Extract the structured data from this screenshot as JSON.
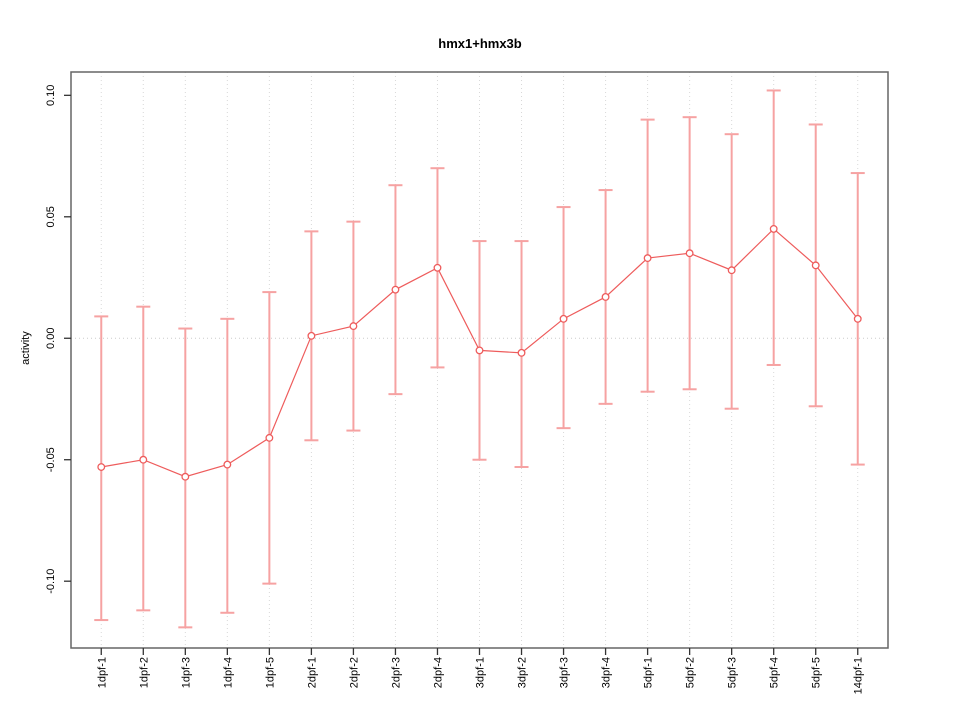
{
  "chart_data": {
    "type": "line",
    "title": "hmx1+hmx3b",
    "xlabel": "",
    "ylabel": "activity",
    "categories": [
      "1dpf-1",
      "1dpf-2",
      "1dpf-3",
      "1dpf-4",
      "1dpf-5",
      "2dpf-1",
      "2dpf-2",
      "2dpf-3",
      "2dpf-4",
      "3dpf-1",
      "3dpf-2",
      "3dpf-3",
      "3dpf-4",
      "5dpf-1",
      "5dpf-2",
      "5dpf-3",
      "5dpf-4",
      "5dpf-5",
      "14dpf-1"
    ],
    "series": [
      {
        "name": "activity",
        "values": [
          -0.053,
          -0.05,
          -0.057,
          -0.052,
          -0.041,
          0.001,
          0.005,
          0.02,
          0.029,
          -0.005,
          -0.006,
          0.008,
          0.017,
          0.033,
          0.035,
          0.028,
          0.045,
          0.03,
          0.008
        ],
        "error_high": [
          0.009,
          0.013,
          0.004,
          0.008,
          0.019,
          0.044,
          0.048,
          0.063,
          0.07,
          0.04,
          0.04,
          0.054,
          0.061,
          0.09,
          0.091,
          0.084,
          0.102,
          0.088,
          0.068
        ],
        "error_low": [
          -0.116,
          -0.112,
          -0.119,
          -0.113,
          -0.101,
          -0.042,
          -0.038,
          -0.023,
          -0.012,
          -0.05,
          -0.053,
          -0.037,
          -0.027,
          -0.022,
          -0.021,
          -0.029,
          -0.011,
          -0.028,
          -0.052
        ]
      }
    ],
    "yticks": [
      -0.1,
      -0.05,
      0.0,
      0.05,
      0.1
    ],
    "ytick_labels": [
      "-0.10",
      "-0.05",
      "0.00",
      "0.05",
      "0.10"
    ],
    "ylim": [
      -0.1275,
      0.1096
    ],
    "legend": "none",
    "grid": {
      "vertical_dotted_per_category": true,
      "horizontal_zero_line_dotted": true
    },
    "point_style": "open-circle",
    "colors": {
      "series": "#ee5c5c",
      "error_bar": "#f6a2a2",
      "grid": "#d8d8d8",
      "zero_line": "#cccccc",
      "box": "#666666",
      "tick": "#333333",
      "text": "#000000",
      "background": "#ffffff"
    }
  }
}
